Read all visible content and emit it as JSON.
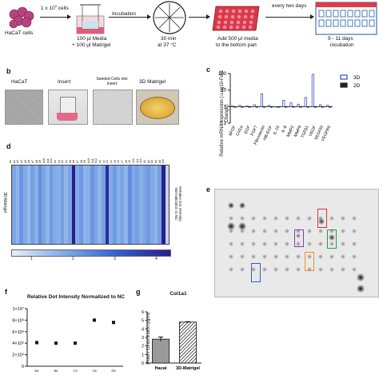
{
  "panel_a": {
    "cells_label": "HaCaT cells",
    "seed_label": "1 x 10",
    "seed_exp": "5",
    "seed_suffix": " cells",
    "media_line1": "100 µl Media",
    "media_line2": "+ 100 µl Matrigel",
    "incubation_label": "Incubation",
    "time_line1": "30 min",
    "time_line2": "at 37 °C",
    "add_line1": "Add 500 µl media",
    "add_line2": "to the bottom part",
    "every_label": "every two days",
    "days_line1": "9 - 11 days",
    "days_line2": "incubation"
  },
  "panel_b": {
    "letter": "b",
    "photos": [
      "HaCaT",
      "Insert",
      "Seeded Cells into Insert",
      "3D Matrigel"
    ]
  },
  "panel_c": {
    "letter": "c",
    "chart_data": {
      "type": "bar",
      "ylabel": "Relative mRNA expression (-Log10-Fold Change)",
      "yscale": "log",
      "ylim": [
        0.1,
        100
      ],
      "yticks": [
        "0.1",
        "1",
        "10",
        "100"
      ],
      "categories": [
        "bFGF",
        "Col1a",
        "EGF",
        "FGF7",
        "Fibronectin",
        "HB-EGF",
        "IL-10",
        "IL-8",
        "MMP2",
        "MMP9",
        "TGFβ1",
        "VEGF",
        "VEGFRI",
        "VEGFRII"
      ],
      "series": [
        {
          "name": "3D",
          "color": "#3a4fc6",
          "values": [
            1.1,
            1.2,
            1.1,
            1.3,
            6.0,
            1.2,
            1.0,
            2.4,
            1.7,
            1.4,
            3.6,
            90,
            1.3,
            1.2
          ]
        },
        {
          "name": "2D",
          "color": "#222222",
          "values": [
            1,
            1,
            1,
            1,
            1,
            1,
            1,
            1,
            1,
            1,
            1,
            1,
            1,
            1
          ]
        }
      ]
    }
  },
  "panel_d": {
    "letter": "d",
    "row_label": "3D-Matrigel",
    "side_label": "Relative Dot Intensity Normalization to NC",
    "col_labels": [
      "a1",
      "a2",
      "a3",
      "a4",
      "a5",
      "a6",
      "a7",
      "a8",
      "a9",
      "a10",
      "a11",
      "a12",
      "b1",
      "b2",
      "b3",
      "b4",
      "b5",
      "b6",
      "b7",
      "b8",
      "b9",
      "b10",
      "b11",
      "b12",
      "c1",
      "c2",
      "c3",
      "c4",
      "c5",
      "c6",
      "c7",
      "c8",
      "c9",
      "c10",
      "c11",
      "c12",
      "d1",
      "d2",
      "d3",
      "d4",
      "d5",
      "NC"
    ],
    "scale_ticks": [
      "1",
      "2",
      "3",
      "4"
    ],
    "chart_data": {
      "type": "heatmap",
      "rows": [
        "3D-Matrigel"
      ],
      "columns": [
        "a1",
        "a2",
        "a3",
        "a4",
        "a5",
        "a6",
        "a7",
        "a8",
        "a9",
        "a10",
        "a11",
        "a12",
        "b1",
        "b2",
        "b3",
        "b4",
        "b5",
        "b6",
        "b7",
        "b8",
        "b9",
        "b10",
        "b11",
        "b12",
        "c1",
        "c2",
        "c3",
        "c4",
        "c5",
        "c6",
        "c7",
        "c8",
        "c9",
        "c10",
        "c11",
        "c12",
        "d1",
        "d2",
        "d3",
        "d4",
        "d5",
        "NC"
      ],
      "values": [
        [
          1.9,
          1.6,
          2.2,
          1.8,
          1.5,
          2.0,
          1.7,
          2.3,
          1.9,
          1.6,
          2.1,
          1.8,
          1.7,
          2.0,
          1.6,
          1.9,
          4.6,
          1.8,
          2.1,
          1.6,
          1.7,
          2.2,
          1.9,
          1.6,
          2.0,
          4.2,
          1.8,
          2.1,
          1.7,
          1.9,
          1.6,
          2.3,
          1.8,
          2.0,
          1.7,
          1.9,
          2.1,
          1.8,
          1.6,
          2.0,
          4.8,
          1.0
        ]
      ],
      "range": [
        0.5,
        4.5
      ]
    }
  },
  "panel_e": {
    "letter": "e"
  },
  "panel_f": {
    "letter": "f",
    "chart_data": {
      "type": "scatter",
      "title": "Relative Dot Intensity Normalized to NC",
      "ylim": [
        0,
        10000000
      ],
      "yticks": [
        "0",
        "2×10⁶",
        "4×10⁶",
        "6×10⁶",
        "8×10⁶",
        "1×10⁷"
      ],
      "categories": [
        "B4",
        "B6",
        "C3",
        "C8",
        "D5"
      ],
      "values": [
        4100000,
        4000000,
        4000000,
        8000000,
        7600000
      ]
    }
  },
  "panel_g": {
    "letter": "g",
    "chart_data": {
      "type": "bar",
      "title": "Col1a1",
      "ylabel": "Protein Concentration (pg/ml)",
      "ylim": [
        0,
        6
      ],
      "yticks": [
        "0",
        "1",
        "2",
        "3",
        "4",
        "5",
        "6"
      ],
      "categories": [
        "Hacat",
        "3D-Matrigel"
      ],
      "values": [
        2.8,
        4.8
      ],
      "errors": [
        0.25,
        0.05
      ]
    }
  }
}
